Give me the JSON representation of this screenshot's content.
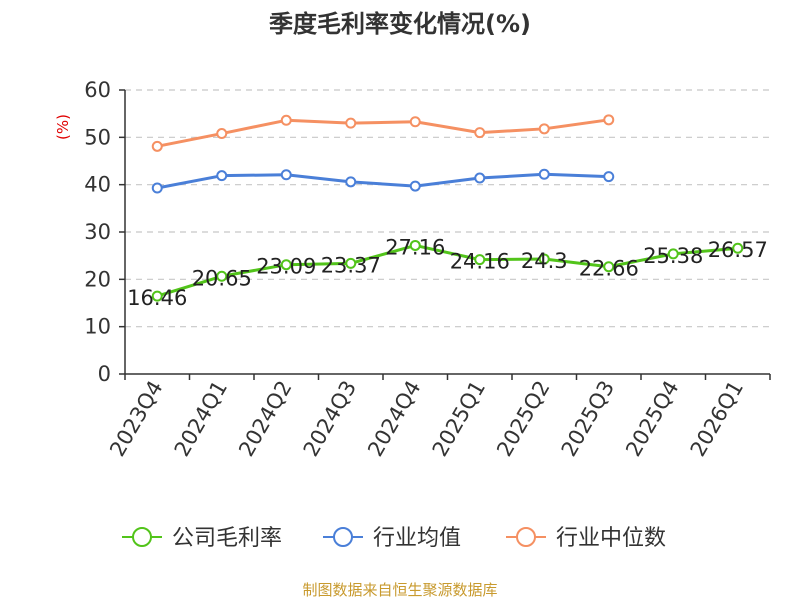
{
  "chart_data": {
    "type": "line",
    "title": "季度毛利率变化情况(%)",
    "ylabel": "(%)",
    "xlabel": "",
    "ylim": [
      0,
      60
    ],
    "yticks": [
      0,
      10,
      20,
      30,
      40,
      50,
      60
    ],
    "grid": true,
    "legend_position": "bottom",
    "categories": [
      "2023Q4",
      "2024Q1",
      "2024Q2",
      "2024Q3",
      "2024Q4",
      "2025Q1",
      "2025Q2",
      "2025Q3",
      "2025Q4",
      "2026Q1"
    ],
    "series": [
      {
        "name": "公司毛利率",
        "color": "#52c41a",
        "values": [
          16.46,
          20.65,
          23.09,
          23.37,
          27.16,
          24.16,
          24.3,
          22.66,
          25.38,
          26.57
        ],
        "labels": [
          "16.46",
          "20.65",
          "23.09",
          "23.37",
          "27.16",
          "24.16",
          "24.3",
          "22.66",
          "25.38",
          "26.57"
        ]
      },
      {
        "name": "行业均值",
        "color": "#4a7fd8",
        "values": [
          39.3,
          41.9,
          42.1,
          40.6,
          39.7,
          41.4,
          42.2,
          41.7,
          null,
          null
        ]
      },
      {
        "name": "行业中位数",
        "color": "#f59062",
        "values": [
          48.1,
          50.8,
          53.6,
          53.0,
          53.3,
          51.0,
          51.8,
          53.7,
          null,
          null
        ]
      }
    ]
  },
  "source": "制图数据来自恒生聚源数据库"
}
